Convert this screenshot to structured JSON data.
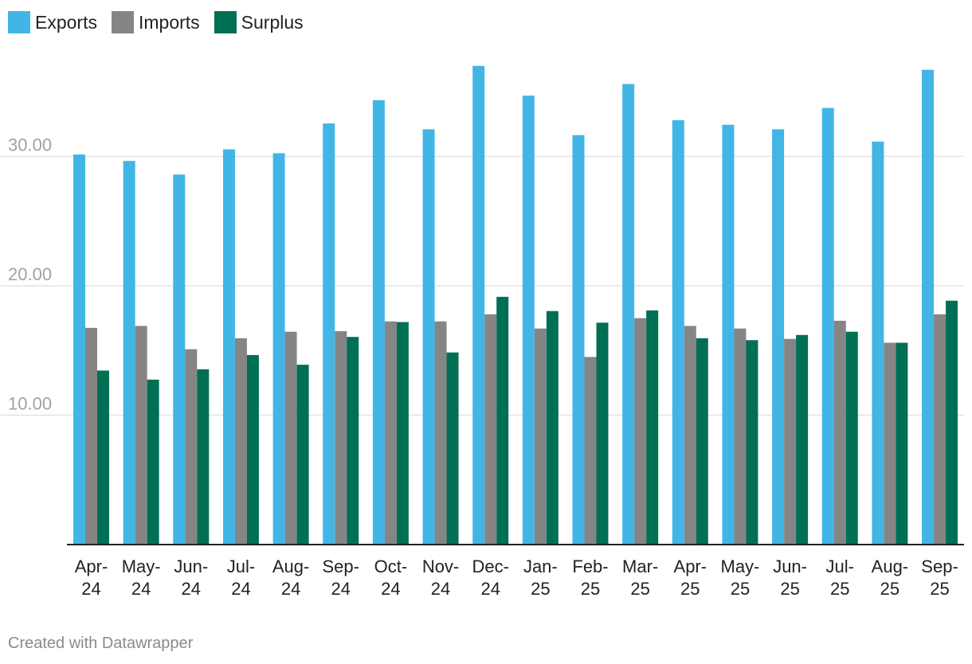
{
  "chart_data": {
    "type": "bar",
    "title": "",
    "xlabel": "",
    "ylabel": "",
    "ylim": [
      0,
      37.5
    ],
    "yticks": [
      10,
      20,
      30
    ],
    "ytick_labels": [
      "10.00",
      "20.00",
      "30.00"
    ],
    "grid": true,
    "legend_position": "top-left",
    "categories": [
      {
        "line1": "Apr-",
        "line2": "24"
      },
      {
        "line1": "May-",
        "line2": "24"
      },
      {
        "line1": "Jun-",
        "line2": "24"
      },
      {
        "line1": "Jul-",
        "line2": "24"
      },
      {
        "line1": "Aug-",
        "line2": "24"
      },
      {
        "line1": "Sep-",
        "line2": "24"
      },
      {
        "line1": "Oct-",
        "line2": "24"
      },
      {
        "line1": "Nov-",
        "line2": "24"
      },
      {
        "line1": "Dec-",
        "line2": "24"
      },
      {
        "line1": "Jan-",
        "line2": "25"
      },
      {
        "line1": "Feb-",
        "line2": "25"
      },
      {
        "line1": "Mar-",
        "line2": "25"
      },
      {
        "line1": "Apr-",
        "line2": "25"
      },
      {
        "line1": "May-",
        "line2": "25"
      },
      {
        "line1": "Jun-",
        "line2": "25"
      },
      {
        "line1": "Jul-",
        "line2": "25"
      },
      {
        "line1": "Aug-",
        "line2": "25"
      },
      {
        "line1": "Sep-",
        "line2": "25"
      }
    ],
    "series": [
      {
        "name": "Exports",
        "color": "#41b6e6",
        "values": [
          30.15,
          29.65,
          28.6,
          30.55,
          30.25,
          32.55,
          34.35,
          32.1,
          37.0,
          34.7,
          31.65,
          35.6,
          32.8,
          32.45,
          32.1,
          33.75,
          31.15,
          36.7
        ]
      },
      {
        "name": "Imports",
        "color": "#858585",
        "values": [
          16.75,
          16.9,
          15.1,
          15.95,
          16.45,
          16.5,
          17.25,
          17.25,
          17.8,
          16.7,
          14.5,
          17.5,
          16.9,
          16.7,
          15.9,
          17.3,
          15.6,
          17.8
        ]
      },
      {
        "name": "Surplus",
        "color": "#006f54",
        "values": [
          13.45,
          12.75,
          13.55,
          14.65,
          13.9,
          16.05,
          17.2,
          14.85,
          19.15,
          18.05,
          17.15,
          18.1,
          15.95,
          15.8,
          16.2,
          16.45,
          15.6,
          18.85
        ]
      }
    ]
  },
  "footer": {
    "credit": "Created with Datawrapper"
  }
}
